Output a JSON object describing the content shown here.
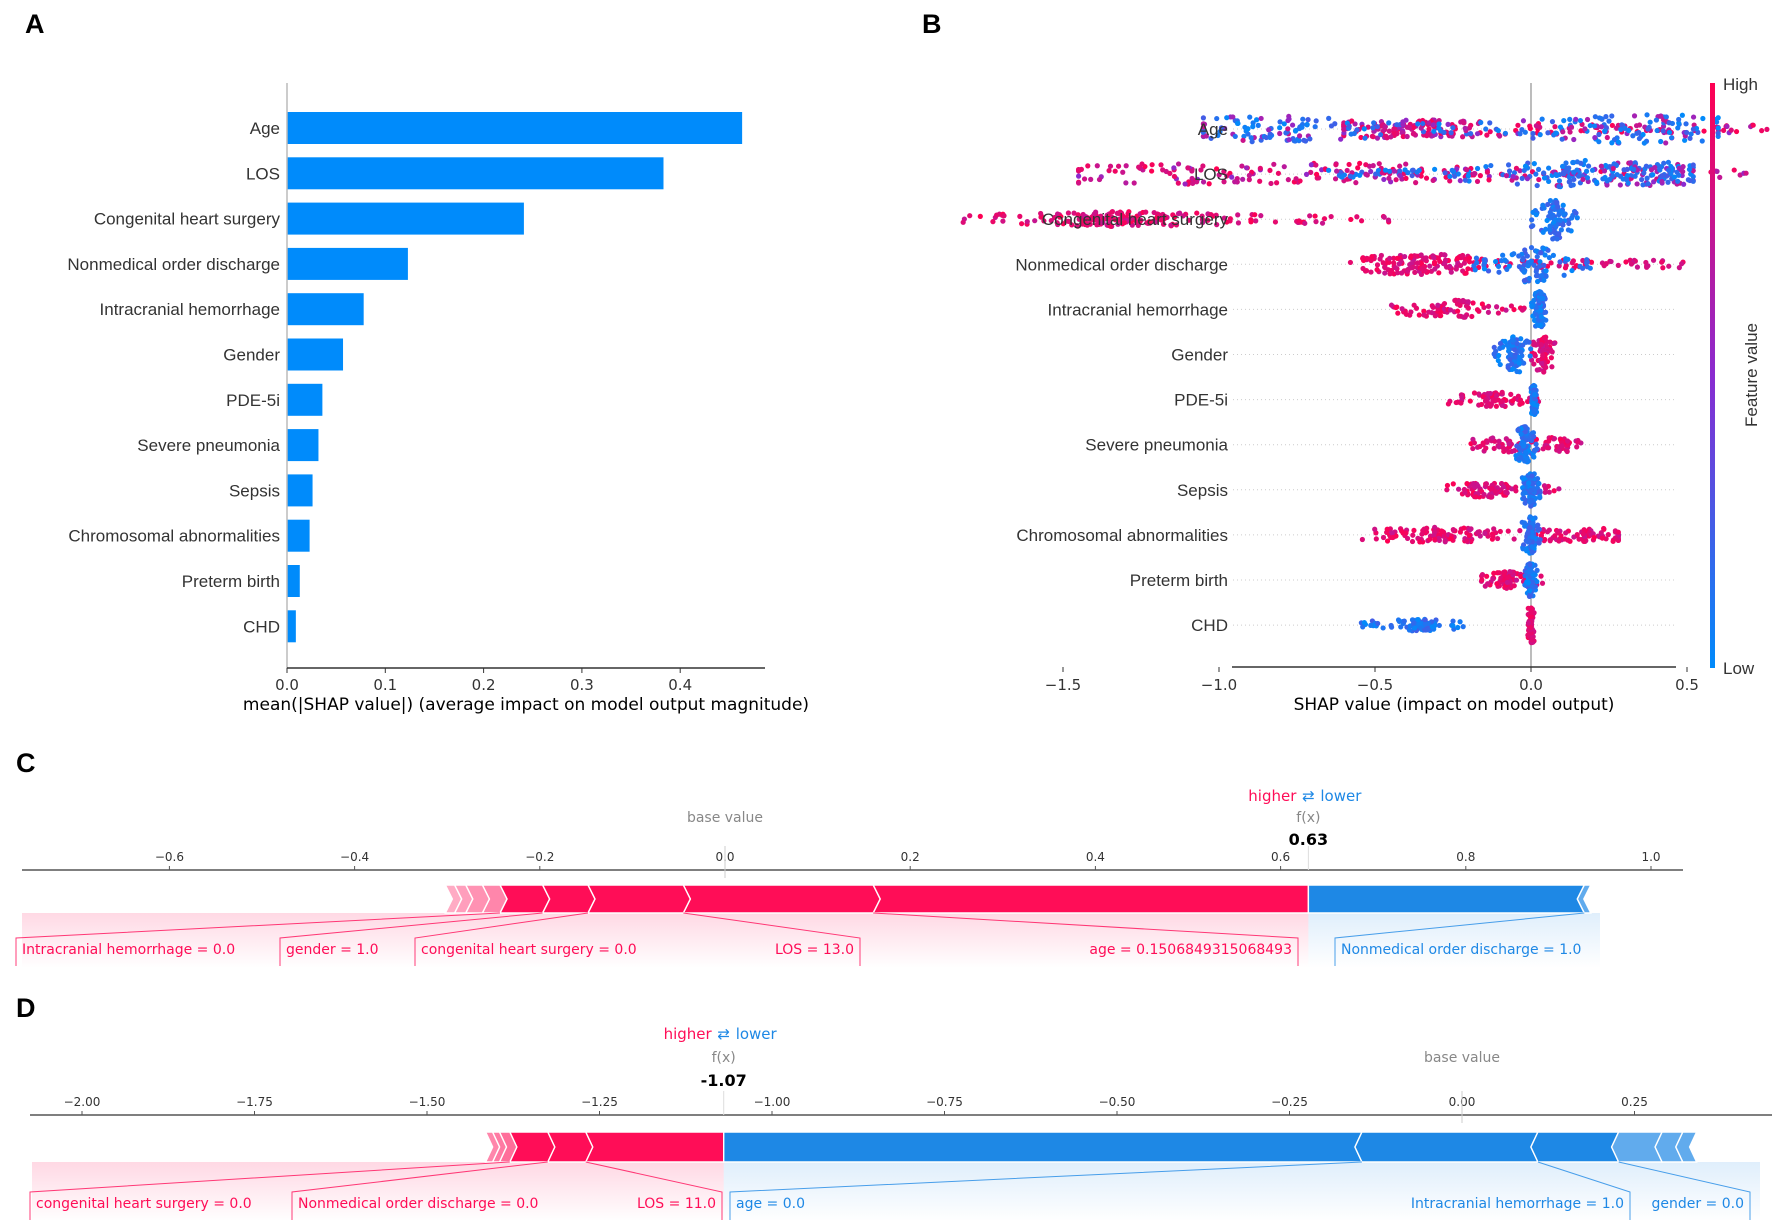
{
  "colors": {
    "bar_blue": "#008bfb",
    "shap_red": "#ff0d57",
    "shap_blue": "#1e88e5",
    "axis_gray": "#888888",
    "text_dark": "#333333"
  },
  "chart_data": [
    {
      "panel": "A",
      "type": "bar",
      "orientation": "horizontal",
      "title": "",
      "categories": [
        "Age",
        "LOS",
        "Congenital heart surgery",
        "Nonmedical order discharge",
        "Intracranial hemorrhage",
        "Gender",
        "PDE-5i",
        "Severe pneumonia",
        "Sepsis",
        "Chromosomal abnormalities",
        "Preterm birth",
        "CHD"
      ],
      "values": [
        0.463,
        0.383,
        0.241,
        0.123,
        0.078,
        0.057,
        0.036,
        0.032,
        0.026,
        0.023,
        0.013,
        0.009
      ],
      "xlabel": "mean(|SHAP value|) (average impact on model output magnitude)",
      "ylabel": "",
      "xticks": [
        "0.0",
        "0.1",
        "0.2",
        "0.3",
        "0.4"
      ],
      "xtick_values": [
        0.0,
        0.1,
        0.2,
        0.3,
        0.4
      ],
      "xlim": [
        0.0,
        0.485
      ]
    },
    {
      "panel": "B",
      "type": "scatter",
      "subtype": "beeswarm",
      "categories": [
        "Age",
        "LOS",
        "Congenital heart surgery",
        "Nonmedical order discharge",
        "Intracranial hemorrhage",
        "Gender",
        "PDE-5i",
        "Severe pneumonia",
        "Sepsis",
        "Chromosomal abnormalities",
        "Preterm birth",
        "CHD"
      ],
      "series": [
        {
          "name": "Age",
          "low_range": [
            -1.05,
            0.6
          ],
          "high_range": [
            -0.6,
            0.82
          ],
          "low_clusters": [
            [
              -0.85,
              0.5
            ],
            [
              0.35,
              0.6
            ]
          ],
          "high_clusters": [
            [
              -0.4,
              0.3
            ]
          ]
        },
        {
          "name": "LOS",
          "low_range": [
            -0.65,
            0.52
          ],
          "high_range": [
            -1.45,
            0.7
          ],
          "low_clusters": [
            [
              0.15,
              0.55
            ],
            [
              0.38,
              0.45
            ]
          ],
          "high_clusters": [
            [
              -1.2,
              0.35
            ],
            [
              -0.6,
              0.4
            ]
          ]
        },
        {
          "name": "Congenital heart surgery",
          "low_range": [
            0.0,
            0.15
          ],
          "high_range": [
            -1.82,
            -0.45
          ],
          "low_clusters": [
            [
              0.08,
              0.9
            ]
          ],
          "high_clusters": [
            [
              -1.3,
              0.2
            ]
          ]
        },
        {
          "name": "Nonmedical order discharge",
          "low_range": [
            -0.2,
            0.2
          ],
          "high_range": [
            -0.58,
            0.5
          ],
          "low_clusters": [
            [
              0.0,
              0.8
            ]
          ],
          "high_clusters": [
            [
              -0.35,
              0.35
            ]
          ]
        },
        {
          "name": "Intracranial hemorrhage",
          "low_range": [
            0.0,
            0.05
          ],
          "high_range": [
            -0.45,
            -0.02
          ],
          "low_clusters": [
            [
              0.03,
              0.8
            ]
          ],
          "high_clusters": [
            [
              -0.25,
              0.3
            ]
          ]
        },
        {
          "name": "Gender",
          "low_range": [
            -0.12,
            0.0
          ],
          "high_range": [
            0.0,
            0.08
          ],
          "low_clusters": [
            [
              -0.05,
              0.8
            ]
          ],
          "high_clusters": [
            [
              0.04,
              0.8
            ]
          ]
        },
        {
          "name": "PDE-5i",
          "low_range": [
            0.0,
            0.02
          ],
          "high_range": [
            -0.28,
            0.03
          ],
          "low_clusters": [
            [
              0.01,
              0.6
            ]
          ],
          "high_clusters": [
            [
              -0.12,
              0.2
            ]
          ]
        },
        {
          "name": "Severe pneumonia",
          "low_range": [
            -0.05,
            0.02
          ],
          "high_range": [
            -0.2,
            0.16
          ],
          "low_clusters": [
            [
              -0.02,
              0.8
            ]
          ],
          "high_clusters": [
            [
              -0.1,
              0.2
            ],
            [
              0.1,
              0.2
            ]
          ]
        },
        {
          "name": "Sepsis",
          "low_range": [
            -0.03,
            0.03
          ],
          "high_range": [
            -0.28,
            0.12
          ],
          "low_clusters": [
            [
              0.0,
              0.7
            ]
          ],
          "high_clusters": [
            [
              -0.15,
              0.2
            ]
          ]
        },
        {
          "name": "Chromosomal abnormalities",
          "low_range": [
            -0.03,
            0.03
          ],
          "high_range": [
            -0.55,
            0.28
          ],
          "low_clusters": [
            [
              0.0,
              0.8
            ]
          ],
          "high_clusters": [
            [
              -0.3,
              0.2
            ],
            [
              0.2,
              0.15
            ]
          ]
        },
        {
          "name": "Preterm birth",
          "low_range": [
            -0.02,
            0.02
          ],
          "high_range": [
            -0.16,
            0.04
          ],
          "low_clusters": [
            [
              0.0,
              0.7
            ]
          ],
          "high_clusters": [
            [
              -0.08,
              0.25
            ]
          ]
        },
        {
          "name": "CHD",
          "low_range": [
            -0.55,
            -0.2
          ],
          "high_range": [
            -0.01,
            0.01
          ],
          "low_clusters": [
            [
              -0.35,
              0.1
            ]
          ],
          "high_clusters": [
            [
              0.0,
              0.8
            ]
          ]
        }
      ],
      "xlabel": "SHAP value (impact on model output)",
      "xticks": [
        "−1.5",
        "−1.0",
        "−0.5",
        "0.0",
        "0.5"
      ],
      "xtick_values": [
        -1.5,
        -1.0,
        -0.5,
        0.0,
        0.5
      ],
      "xlim": [
        -1.9,
        0.92
      ],
      "colorbar": {
        "label": "Feature value",
        "high": "High",
        "low": "Low"
      }
    },
    {
      "panel": "C",
      "type": "bar",
      "subtype": "force_plot",
      "base_value_label": "base value",
      "base_value": 0.0,
      "fx_label": "f(x)",
      "fx_value": 0.63,
      "fx_text": "0.63",
      "legend": {
        "higher": "higher",
        "arrow": "⇄",
        "lower": "lower"
      },
      "xticks": [
        "−0.6",
        "−0.4",
        "−0.2",
        "0.0",
        "0.2",
        "0.4",
        "0.6",
        "0.8",
        "1.0"
      ],
      "xtick_values": [
        -0.6,
        -0.4,
        -0.2,
        0.0,
        0.2,
        0.4,
        0.6,
        0.8,
        1.0
      ],
      "xlim": [
        -0.76,
        1.04
      ],
      "positive_segments": [
        {
          "label": "age = 0.1506849315068493",
          "from": 0.16,
          "to": 0.63
        },
        {
          "label": "LOS = 13.0",
          "from": -0.045,
          "to": 0.16
        },
        {
          "label": "congenital heart surgery = 0.0",
          "from": -0.148,
          "to": -0.045
        },
        {
          "label": "gender = 1.0",
          "from": -0.197,
          "to": -0.148
        },
        {
          "label": "Intracranial hemorrhage = 0.0",
          "from": -0.243,
          "to": -0.197
        },
        {
          "label": "",
          "from": -0.262,
          "to": -0.243
        },
        {
          "label": "",
          "from": -0.28,
          "to": -0.262
        },
        {
          "label": "",
          "from": -0.292,
          "to": -0.28
        },
        {
          "label": "",
          "from": -0.302,
          "to": -0.292
        }
      ],
      "negative_segments": [
        {
          "label": "Nonmedical order discharge = 1.0",
          "from": 0.63,
          "to": 0.928
        },
        {
          "label": "",
          "from": 0.928,
          "to": 0.935
        }
      ]
    },
    {
      "panel": "D",
      "type": "bar",
      "subtype": "force_plot",
      "base_value_label": "base value",
      "base_value": 0.0,
      "fx_label": "f(x)",
      "fx_value": -1.07,
      "fx_text": "-1.07",
      "legend": {
        "higher": "higher",
        "arrow": "⇄",
        "lower": "lower"
      },
      "xticks": [
        "−2.00",
        "−1.75",
        "−1.50",
        "−1.25",
        "−1.00",
        "−0.75",
        "−0.50",
        "−0.25",
        "0.00",
        "0.25"
      ],
      "xtick_values": [
        -2.0,
        -1.75,
        -1.5,
        -1.25,
        -1.0,
        -0.75,
        -0.5,
        -0.25,
        0.0,
        0.25
      ],
      "xlim": [
        -2.12,
        0.44
      ],
      "positive_segments": [
        {
          "label": "LOS = 11.0",
          "from": -1.27,
          "to": -1.07
        },
        {
          "label": "Nonmedical order discharge = 0.0",
          "from": -1.325,
          "to": -1.27
        },
        {
          "label": "congenital heart surgery = 0.0",
          "from": -1.38,
          "to": -1.325
        },
        {
          "label": "",
          "from": -1.395,
          "to": -1.38
        },
        {
          "label": "",
          "from": -1.405,
          "to": -1.395
        },
        {
          "label": "",
          "from": -1.415,
          "to": -1.405
        }
      ],
      "negative_segments": [
        {
          "label": "age = 0.0",
          "from": -1.07,
          "to": -0.145
        },
        {
          "label": "Intracranial hemorrhage = 1.0",
          "from": -0.145,
          "to": 0.11
        },
        {
          "label": "gender = 0.0",
          "from": 0.11,
          "to": 0.227
        },
        {
          "label": "",
          "from": 0.227,
          "to": 0.29
        },
        {
          "label": "",
          "from": 0.29,
          "to": 0.32
        },
        {
          "label": "",
          "from": 0.32,
          "to": 0.34
        }
      ]
    }
  ],
  "panels": {
    "a_letter": "A",
    "b_letter": "B",
    "c_letter": "C",
    "d_letter": "D"
  }
}
